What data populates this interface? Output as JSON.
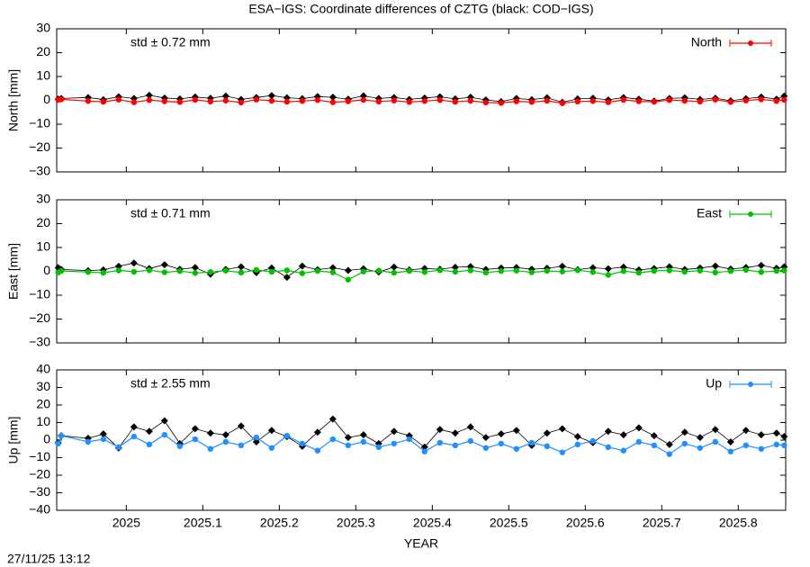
{
  "footer": "27/11/25 13:12",
  "chart_data": [
    {
      "type": "line",
      "title": "ESA−IGS: Coordinate differences of CZTG (black: COD−IGS)",
      "ylabel": "North [mm]",
      "annotation": "std ± 0.72 mm",
      "legend": "top right",
      "xlim": [
        2024.909,
        2025.862
      ],
      "xticks": [
        2025,
        2025.1,
        2025.2,
        2025.3,
        2025.4,
        2025.5,
        2025.6,
        2025.7,
        2025.8
      ],
      "ylim": [
        -30,
        30
      ],
      "yticks": [
        {
          "value": -30,
          "label": "−30"
        },
        {
          "value": -20,
          "label": "−20"
        },
        {
          "value": -10,
          "label": "−10"
        },
        0,
        10,
        20,
        30
      ],
      "x": [
        2024.911,
        2024.915,
        2024.95,
        2024.97,
        2024.99,
        2025.01,
        2025.03,
        2025.05,
        2025.07,
        2025.09,
        2025.11,
        2025.13,
        2025.15,
        2025.17,
        2025.19,
        2025.21,
        2025.23,
        2025.25,
        2025.27,
        2025.29,
        2025.31,
        2025.33,
        2025.35,
        2025.37,
        2025.39,
        2025.41,
        2025.43,
        2025.45,
        2025.47,
        2025.49,
        2025.51,
        2025.53,
        2025.55,
        2025.57,
        2025.59,
        2025.61,
        2025.63,
        2025.65,
        2025.67,
        2025.69,
        2025.71,
        2025.73,
        2025.75,
        2025.77,
        2025.79,
        2025.81,
        2025.83,
        2025.85,
        2025.86
      ],
      "series": [
        {
          "color": "#000000",
          "values": [
            0.5,
            0.8,
            1.2,
            0.3,
            1.5,
            0.8,
            2.1,
            1.0,
            0.6,
            1.4,
            0.9,
            1.8,
            0.4,
            1.2,
            2.0,
            1.1,
            0.7,
            1.6,
            1.3,
            0.5,
            1.9,
            0.8,
            1.2,
            0.4,
            1.0,
            1.5,
            0.6,
            1.3,
            0.2,
            -0.5,
            0.8,
            0.3,
            1.1,
            -0.8,
            0.6,
            0.9,
            0.2,
            1.2,
            0.5,
            -0.3,
            0.8,
            1.1,
            0.4,
            0.9,
            -0.2,
            0.7,
            1.4,
            0.5,
            1.8
          ]
        },
        {
          "name": "North",
          "color": "#ff0000",
          "values": [
            0.2,
            0.4,
            -0.3,
            -0.6,
            0.3,
            -0.8,
            0.1,
            -0.4,
            -0.7,
            0.2,
            -0.5,
            -0.1,
            -0.9,
            0.3,
            -0.2,
            -0.6,
            -0.3,
            0.1,
            -0.8,
            -0.4,
            0.2,
            -0.5,
            -0.1,
            -0.7,
            -0.3,
            0.1,
            -0.6,
            -0.2,
            -0.9,
            -1.1,
            -0.4,
            -0.7,
            -0.2,
            -1.2,
            -0.5,
            -0.3,
            -0.8,
            0.2,
            -0.4,
            -0.6,
            0.1,
            -0.2,
            -0.5,
            0.3,
            -0.7,
            -0.1,
            0.4,
            -0.3,
            0.2
          ]
        }
      ]
    },
    {
      "type": "line",
      "ylabel": "East [mm]",
      "annotation": "std ± 0.71 mm",
      "legend": "top right",
      "xlim": [
        2024.909,
        2025.862
      ],
      "xticks": [
        2025,
        2025.1,
        2025.2,
        2025.3,
        2025.4,
        2025.5,
        2025.6,
        2025.7,
        2025.8
      ],
      "ylim": [
        -30,
        30
      ],
      "yticks": [
        {
          "value": -30,
          "label": "−30"
        },
        {
          "value": -20,
          "label": "−20"
        },
        {
          "value": -10,
          "label": "−10"
        },
        0,
        10,
        20,
        30
      ],
      "x": [
        2024.911,
        2024.915,
        2024.95,
        2024.97,
        2024.99,
        2025.01,
        2025.03,
        2025.05,
        2025.07,
        2025.09,
        2025.11,
        2025.13,
        2025.15,
        2025.17,
        2025.19,
        2025.21,
        2025.23,
        2025.25,
        2025.27,
        2025.29,
        2025.31,
        2025.33,
        2025.35,
        2025.37,
        2025.39,
        2025.41,
        2025.43,
        2025.45,
        2025.47,
        2025.49,
        2025.51,
        2025.53,
        2025.55,
        2025.57,
        2025.59,
        2025.61,
        2025.63,
        2025.65,
        2025.67,
        2025.69,
        2025.71,
        2025.73,
        2025.75,
        2025.77,
        2025.79,
        2025.81,
        2025.83,
        2025.85,
        2025.86
      ],
      "series": [
        {
          "color": "#000000",
          "values": [
            1.5,
            0.8,
            0.3,
            0.6,
            2.1,
            3.5,
            1.2,
            2.8,
            0.9,
            1.6,
            -1.2,
            0.8,
            1.9,
            -0.5,
            1.4,
            -2.5,
            2.2,
            0.7,
            1.5,
            0.4,
            1.1,
            -0.3,
            1.8,
            0.6,
            1.2,
            0.9,
            1.7,
            2.0,
            0.8,
            1.4,
            1.6,
            0.9,
            1.3,
            2.1,
            0.7,
            1.5,
            1.1,
            1.8,
            0.6,
            1.2,
            1.9,
            0.8,
            1.4,
            2.2,
            1.0,
            1.6,
            2.5,
            1.3,
            1.9
          ]
        },
        {
          "name": "East",
          "color": "#00c000",
          "values": [
            -0.5,
            0.2,
            -0.3,
            -0.6,
            0.4,
            -0.2,
            0.5,
            -0.4,
            0.1,
            -0.7,
            -0.3,
            0.3,
            -0.5,
            0.6,
            -0.2,
            0.4,
            -0.8,
            0.2,
            -0.4,
            -3.5,
            -0.1,
            0.3,
            -0.6,
            0.2,
            -0.3,
            0.5,
            -0.2,
            0.4,
            -0.5,
            0.1,
            0.3,
            -0.4,
            0.2,
            -0.1,
            0.5,
            -0.3,
            -1.5,
            0.1,
            -0.6,
            0.2,
            0.4,
            -0.2,
            0.3,
            -0.5,
            0.1,
            0.6,
            -0.3,
            0.2,
            0.4
          ]
        }
      ]
    },
    {
      "type": "line",
      "ylabel": "Up [mm]",
      "xlabel": "YEAR",
      "annotation": "std ± 2.55 mm",
      "legend": "top right",
      "xlim": [
        2024.909,
        2025.862
      ],
      "xticks": [
        2025,
        2025.1,
        2025.2,
        2025.3,
        2025.4,
        2025.5,
        2025.6,
        2025.7,
        2025.8
      ],
      "ylim": [
        -40,
        40
      ],
      "yticks": [
        {
          "value": -40,
          "label": "−40"
        },
        {
          "value": -30,
          "label": "−30"
        },
        {
          "value": -20,
          "label": "−20"
        },
        {
          "value": -10,
          "label": "−10"
        },
        0,
        10,
        20,
        30,
        40
      ],
      "x": [
        2024.911,
        2024.915,
        2024.95,
        2024.97,
        2024.99,
        2025.01,
        2025.03,
        2025.05,
        2025.07,
        2025.09,
        2025.11,
        2025.13,
        2025.15,
        2025.17,
        2025.19,
        2025.21,
        2025.23,
        2025.25,
        2025.27,
        2025.29,
        2025.31,
        2025.33,
        2025.35,
        2025.37,
        2025.39,
        2025.41,
        2025.43,
        2025.45,
        2025.47,
        2025.49,
        2025.51,
        2025.53,
        2025.55,
        2025.57,
        2025.59,
        2025.61,
        2025.63,
        2025.65,
        2025.67,
        2025.69,
        2025.71,
        2025.73,
        2025.75,
        2025.77,
        2025.79,
        2025.81,
        2025.83,
        2025.85,
        2025.86
      ],
      "series": [
        {
          "color": "#000000",
          "values": [
            -1.5,
            2.5,
            1.0,
            3.5,
            -4.5,
            7.5,
            5.0,
            11.0,
            -2.0,
            6.5,
            4.0,
            3.0,
            8.0,
            -1.0,
            5.5,
            2.0,
            -3.5,
            4.5,
            12.0,
            1.5,
            3.0,
            -2.0,
            5.0,
            2.5,
            -4.0,
            6.0,
            4.0,
            7.5,
            1.5,
            3.5,
            5.5,
            -3.0,
            4.0,
            6.5,
            2.0,
            -1.5,
            5.0,
            3.0,
            7.0,
            2.5,
            -2.5,
            4.5,
            1.5,
            6.0,
            -1.0,
            5.5,
            3.0,
            4.0,
            2.0
          ]
        },
        {
          "name": "Up",
          "color": "#1e90ff",
          "values": [
            -2.0,
            2.5,
            -1.0,
            0.5,
            -4.0,
            2.0,
            -2.5,
            3.0,
            -3.5,
            0.5,
            -5.0,
            -1.0,
            -3.0,
            1.5,
            -4.5,
            2.5,
            -2.0,
            -6.0,
            0.5,
            -3.0,
            -1.0,
            -4.0,
            -2.0,
            0.5,
            -6.5,
            -1.5,
            -3.0,
            -0.5,
            -4.5,
            -2.0,
            -5.0,
            -1.5,
            -3.5,
            -7.0,
            -2.5,
            -0.5,
            -4.0,
            -6.0,
            -1.0,
            -3.0,
            -8.0,
            -2.0,
            -4.5,
            -1.0,
            -6.5,
            -3.0,
            -5.0,
            -2.5,
            -3.0
          ]
        }
      ]
    }
  ]
}
